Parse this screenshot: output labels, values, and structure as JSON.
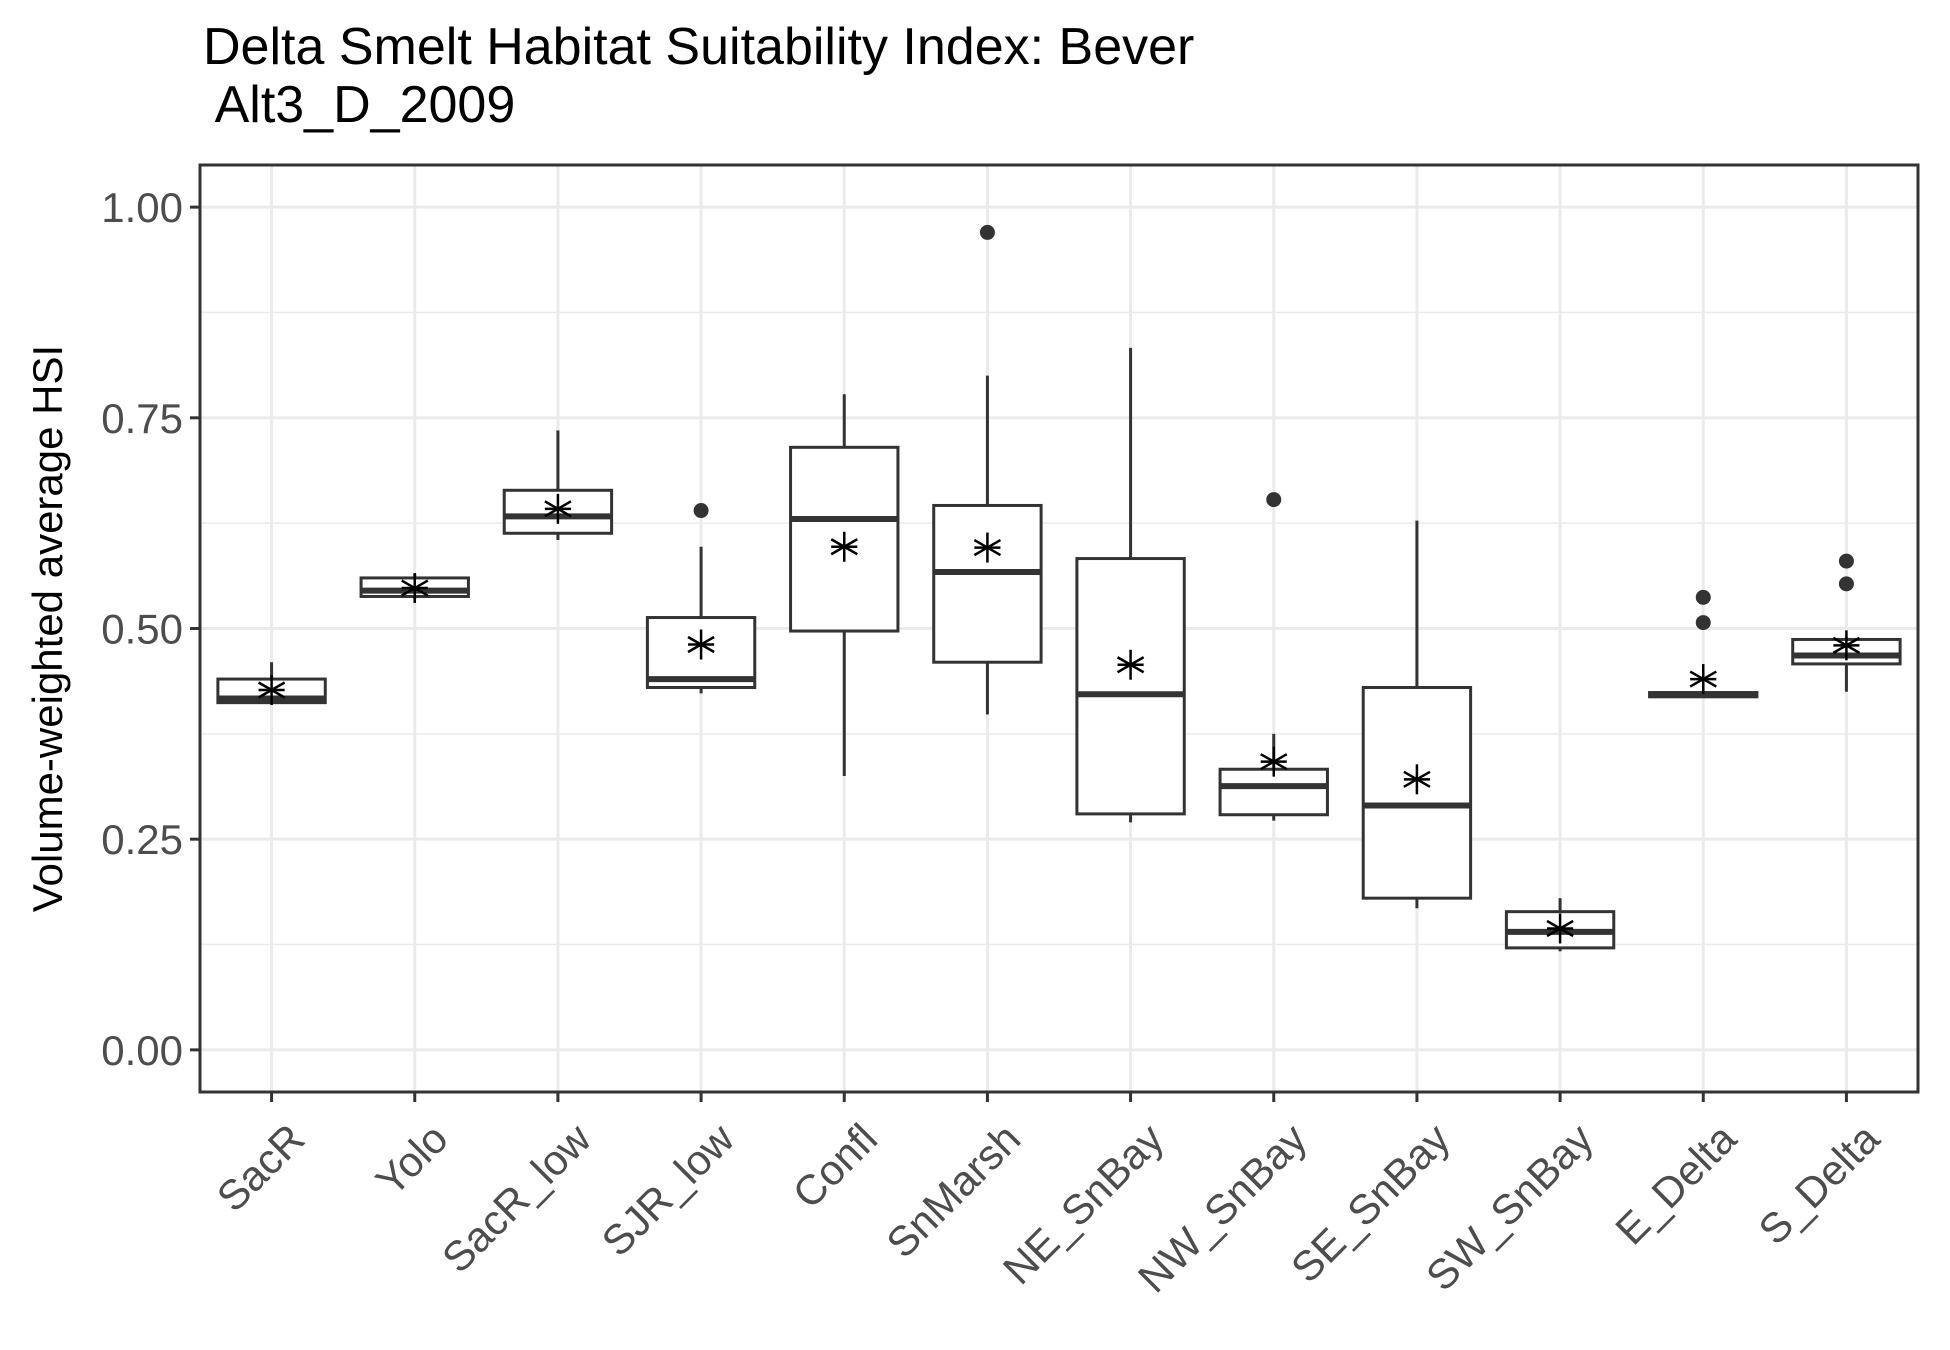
{
  "chart_data": {
    "type": "boxplot",
    "title": "Delta Smelt Habitat Suitability Index: Bever\n Alt3_D_2009",
    "xlabel": "",
    "ylabel": "Volume-weighted average HSI",
    "ylim": [
      -0.05,
      1.05
    ],
    "yticks": [
      0,
      0.25,
      0.5,
      0.75,
      1.0
    ],
    "ytick_labels": [
      "0.00",
      "0.25",
      "0.50",
      "0.75",
      "1.00"
    ],
    "grid": true,
    "categories": [
      "SacR",
      "Yolo",
      "SacR_low",
      "SJR_low",
      "Confl",
      "SnMarsh",
      "NE_SnBay",
      "NW_SnBay",
      "SE_SnBay",
      "SW_SnBay",
      "E_Delta",
      "S_Delta"
    ],
    "boxes": [
      {
        "category": "SacR",
        "whisker_low": 0.41,
        "q1": 0.412,
        "median": 0.417,
        "q3": 0.44,
        "whisker_high": 0.46,
        "mean": 0.427,
        "outliers": []
      },
      {
        "category": "Yolo",
        "whisker_low": 0.535,
        "q1": 0.538,
        "median": 0.545,
        "q3": 0.56,
        "whisker_high": 0.565,
        "mean": 0.548,
        "outliers": []
      },
      {
        "category": "SacR_low",
        "whisker_low": 0.605,
        "q1": 0.613,
        "median": 0.633,
        "q3": 0.664,
        "whisker_high": 0.735,
        "mean": 0.642,
        "outliers": []
      },
      {
        "category": "SJR_low",
        "whisker_low": 0.423,
        "q1": 0.43,
        "median": 0.44,
        "q3": 0.513,
        "whisker_high": 0.597,
        "mean": 0.481,
        "outliers": [
          0.64
        ]
      },
      {
        "category": "Confl",
        "whisker_low": 0.325,
        "q1": 0.497,
        "median": 0.63,
        "q3": 0.715,
        "whisker_high": 0.778,
        "mean": 0.597,
        "outliers": []
      },
      {
        "category": "SnMarsh",
        "whisker_low": 0.398,
        "q1": 0.46,
        "median": 0.567,
        "q3": 0.646,
        "whisker_high": 0.8,
        "mean": 0.596,
        "outliers": [
          0.97
        ]
      },
      {
        "category": "NE_SnBay",
        "whisker_low": 0.27,
        "q1": 0.28,
        "median": 0.422,
        "q3": 0.583,
        "whisker_high": 0.833,
        "mean": 0.457,
        "outliers": []
      },
      {
        "category": "NW_SnBay",
        "whisker_low": 0.272,
        "q1": 0.279,
        "median": 0.313,
        "q3": 0.333,
        "whisker_high": 0.375,
        "mean": 0.342,
        "outliers": [
          0.653
        ]
      },
      {
        "category": "SE_SnBay",
        "whisker_low": 0.168,
        "q1": 0.18,
        "median": 0.29,
        "q3": 0.43,
        "whisker_high": 0.628,
        "mean": 0.321,
        "outliers": []
      },
      {
        "category": "SW_SnBay",
        "whisker_low": 0.117,
        "q1": 0.121,
        "median": 0.14,
        "q3": 0.164,
        "whisker_high": 0.18,
        "mean": 0.144,
        "outliers": []
      },
      {
        "category": "E_Delta",
        "whisker_low": 0.418,
        "q1": 0.419,
        "median": 0.421,
        "q3": 0.424,
        "whisker_high": 0.426,
        "mean": 0.44,
        "outliers": [
          0.507,
          0.537
        ]
      },
      {
        "category": "S_Delta",
        "whisker_low": 0.425,
        "q1": 0.458,
        "median": 0.468,
        "q3": 0.487,
        "whisker_high": 0.49,
        "mean": 0.48,
        "outliers": [
          0.553,
          0.58
        ]
      }
    ]
  },
  "colors": {
    "background": "#ffffff",
    "grid": "#ebebeb",
    "box_stroke": "#333333",
    "panel_border": "#333333",
    "tick_text": "#4d4d4d",
    "mean_marker": "#000000"
  }
}
